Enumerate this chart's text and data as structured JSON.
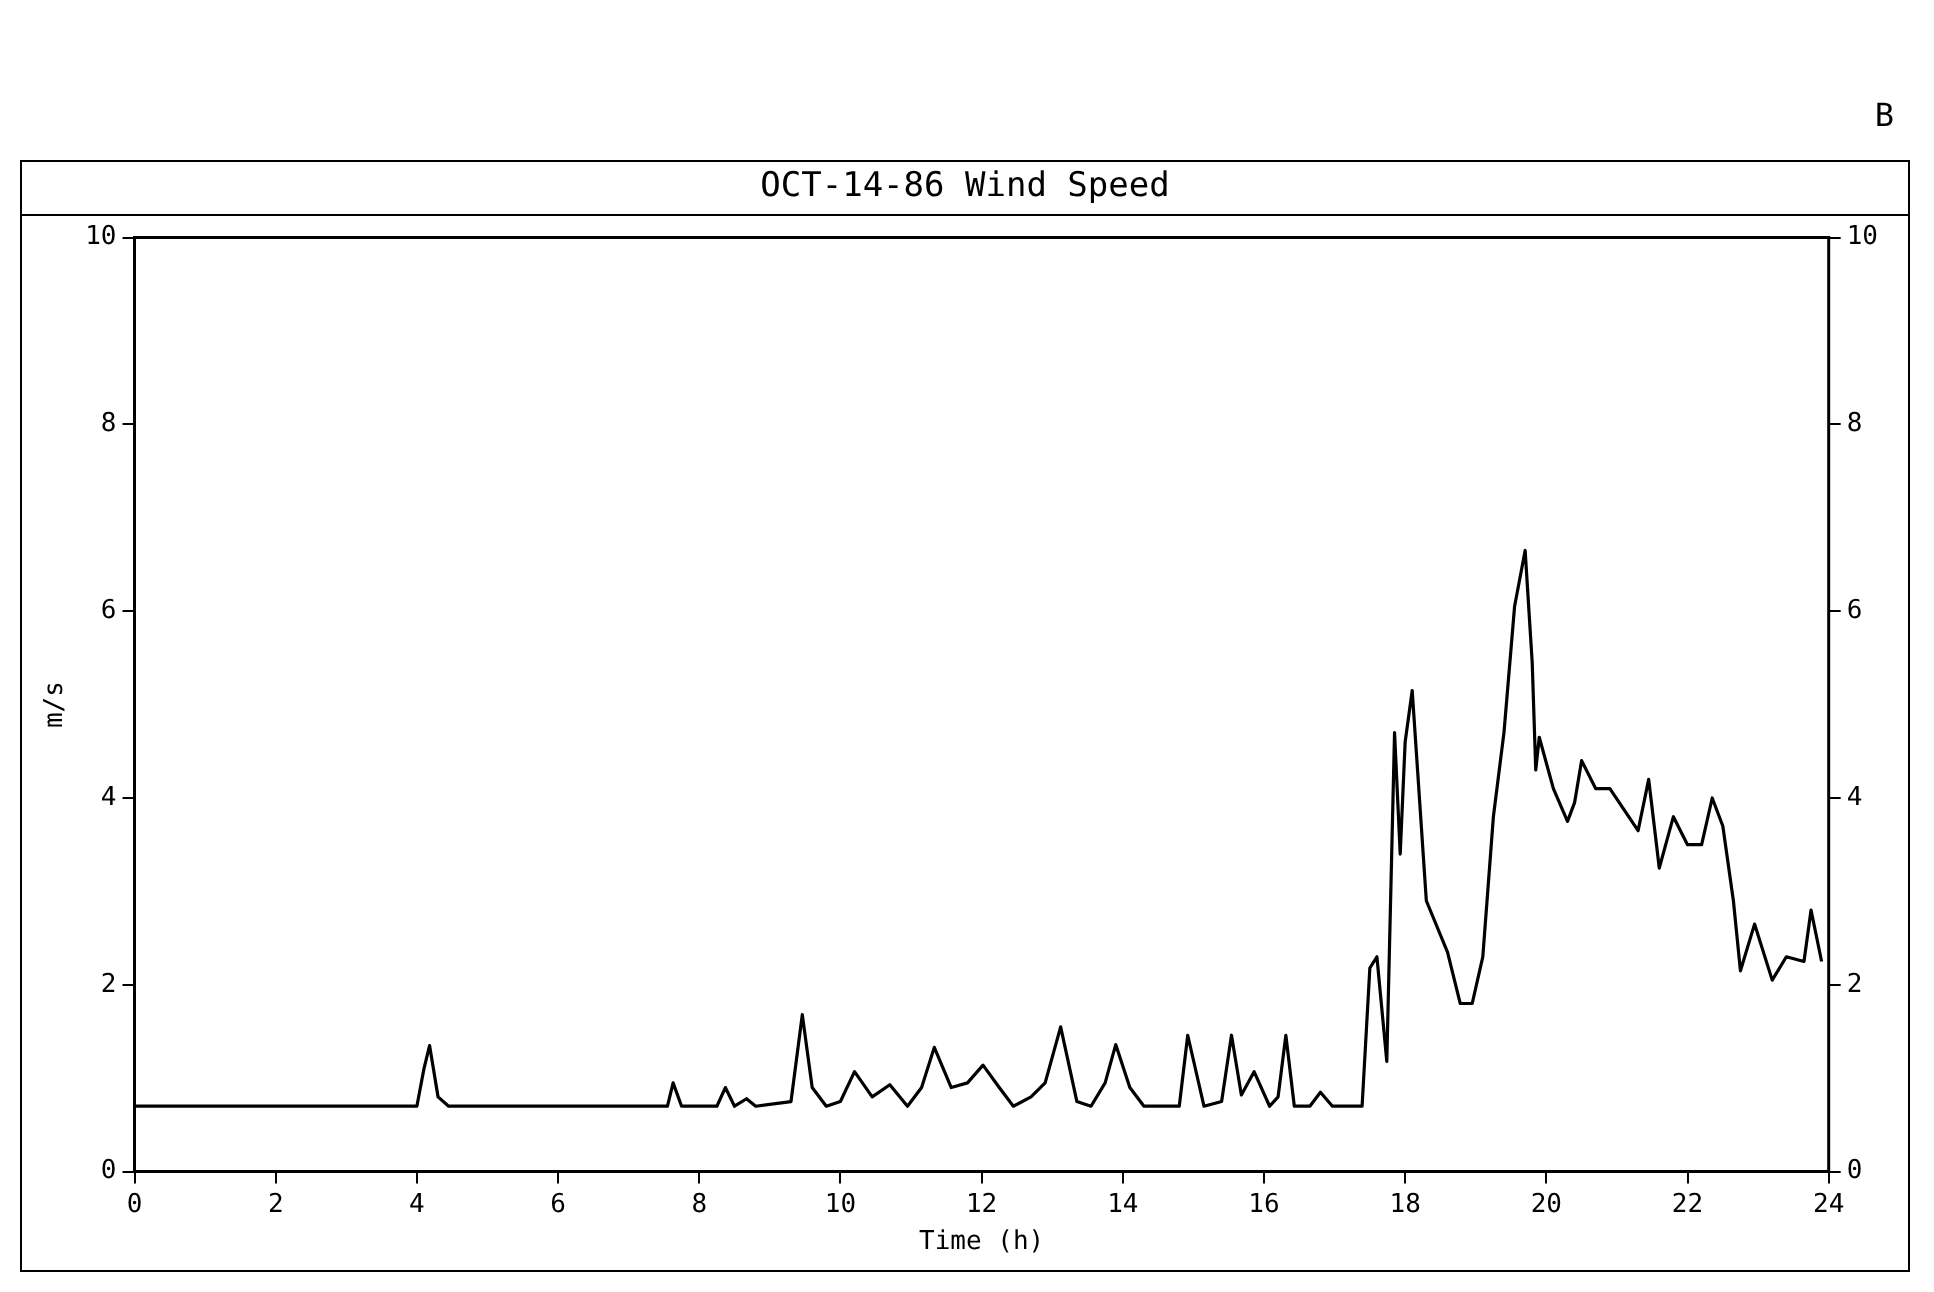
{
  "chart_data": {
    "type": "line",
    "title": "OCT-14-86  Wind Speed",
    "xlabel": "Time (h)",
    "ylabel": "m/s",
    "annotations": [
      "B"
    ],
    "xlim": [
      0,
      24
    ],
    "xticks": [
      0,
      2,
      4,
      6,
      8,
      10,
      12,
      14,
      16,
      18,
      20,
      22,
      24
    ],
    "ylim": [
      0,
      10
    ],
    "yticks": [
      0,
      2,
      4,
      6,
      8,
      10
    ],
    "y2lim": [
      0,
      10
    ],
    "y2ticks": [
      0,
      2,
      4,
      6,
      8,
      10
    ],
    "grid": false,
    "legend": false,
    "series": [
      {
        "color": "#000000",
        "x": [
          0,
          4.0,
          4.1,
          4.18,
          4.3,
          4.45,
          7.55,
          7.63,
          7.75,
          8.25,
          8.37,
          8.5,
          8.67,
          8.8,
          9.3,
          9.46,
          9.6,
          9.8,
          10.0,
          10.2,
          10.45,
          10.7,
          10.95,
          11.15,
          11.33,
          11.57,
          11.8,
          12.02,
          12.25,
          12.45,
          12.7,
          12.9,
          13.12,
          13.35,
          13.55,
          13.75,
          13.9,
          14.1,
          14.3,
          14.8,
          14.92,
          15.15,
          15.4,
          15.54,
          15.68,
          15.86,
          16.08,
          16.2,
          16.31,
          16.43,
          16.65,
          16.8,
          16.97,
          17.39,
          17.5,
          17.6,
          17.74,
          17.85,
          17.93,
          18.0,
          18.1,
          18.3,
          18.6,
          18.78,
          18.95,
          19.1,
          19.25,
          19.4,
          19.55,
          19.7,
          19.8,
          19.85,
          19.9,
          20.1,
          20.3,
          20.4,
          20.5,
          20.7,
          20.9,
          21.3,
          21.45,
          21.6,
          21.8,
          22.0,
          22.2,
          22.35,
          22.5,
          22.65,
          22.75,
          22.95,
          23.2,
          23.4,
          23.65,
          23.75,
          23.9
        ],
        "values": [
          0.7,
          0.7,
          1.1,
          1.35,
          0.8,
          0.7,
          0.7,
          0.95,
          0.7,
          0.7,
          0.9,
          0.7,
          0.78,
          0.7,
          0.75,
          1.68,
          0.9,
          0.7,
          0.75,
          1.07,
          0.8,
          0.93,
          0.7,
          0.9,
          1.33,
          0.9,
          0.95,
          1.14,
          0.9,
          0.7,
          0.8,
          0.95,
          1.55,
          0.75,
          0.7,
          0.95,
          1.36,
          0.9,
          0.7,
          0.7,
          1.46,
          0.7,
          0.75,
          1.46,
          0.82,
          1.07,
          0.7,
          0.8,
          1.46,
          0.7,
          0.7,
          0.85,
          0.7,
          0.7,
          2.18,
          2.3,
          1.18,
          4.7,
          3.4,
          4.6,
          5.15,
          2.9,
          2.35,
          1.8,
          1.8,
          2.3,
          3.8,
          4.7,
          6.05,
          6.65,
          5.45,
          4.3,
          4.65,
          4.1,
          3.75,
          3.95,
          4.4,
          4.1,
          4.1,
          3.65,
          4.2,
          3.25,
          3.8,
          3.5,
          3.5,
          4.0,
          3.7,
          2.9,
          2.15,
          2.65,
          2.05,
          2.3,
          2.25,
          2.8,
          2.25
        ]
      }
    ]
  }
}
